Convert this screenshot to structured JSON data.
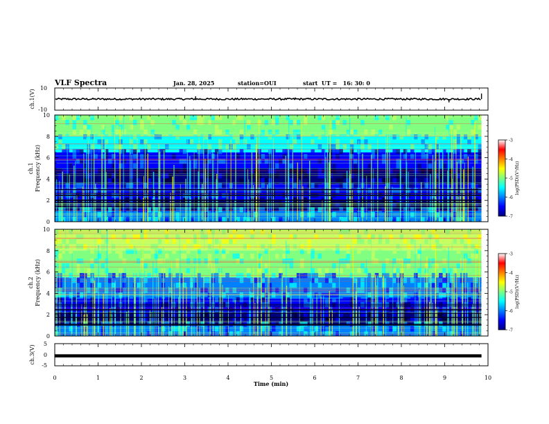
{
  "header": {
    "title": "VLF Spectra",
    "date": "Jan. 28, 2025",
    "station": "station=OUI",
    "start": "start  UT =   16: 30: 0"
  },
  "colorbar": {
    "label": "log(PSD)(V²/Hz)",
    "ticks": [
      "-3",
      "-4",
      "-5",
      "-6",
      "-7"
    ],
    "colors": [
      "#00007f",
      "#0000ff",
      "#0080ff",
      "#00ffff",
      "#80ff80",
      "#ffff00",
      "#ff8000",
      "#ff0000",
      "#ffffff"
    ]
  },
  "chart_data": [
    {
      "type": "line",
      "panel": "ch1-voltage",
      "ylabel": "ch.1(V)",
      "ylim": [
        -10,
        10
      ],
      "yticks": [
        "10",
        "-10"
      ],
      "series": [
        {
          "x": [
            0,
            3.25,
            5.55,
            9.1,
            9.85
          ],
          "y": [
            0,
            2.5,
            1.5,
            -3,
            5
          ]
        }
      ]
    },
    {
      "type": "heatmap",
      "panel": "ch1-spectrogram",
      "ylabel": "ch.1\nFrequency (kHz)",
      "xlim": [
        0,
        10
      ],
      "ylim": [
        0,
        10
      ],
      "yticks": [
        "0",
        "2",
        "4",
        "6",
        "8",
        "10"
      ],
      "zlim": [
        -7,
        -3
      ],
      "bands": [
        {
          "f0": 0,
          "f1": 1.0,
          "level": 3
        },
        {
          "f0": 1.0,
          "f1": 2.0,
          "level": 1
        },
        {
          "f0": 2.0,
          "f1": 3.5,
          "level": 2
        },
        {
          "f0": 3.5,
          "f1": 5.0,
          "level": 1
        },
        {
          "f0": 5.0,
          "f1": 6.5,
          "level": 2
        },
        {
          "f0": 6.5,
          "f1": 8.0,
          "level": 4
        },
        {
          "f0": 8.0,
          "f1": 10.0,
          "level": 5
        }
      ]
    },
    {
      "type": "heatmap",
      "panel": "ch2-spectrogram",
      "ylabel": "ch.2\nFrequency (kHz)",
      "xlim": [
        0,
        10
      ],
      "ylim": [
        0,
        10
      ],
      "yticks": [
        "0",
        "2",
        "4",
        "6",
        "8",
        "10"
      ],
      "zlim": [
        -7,
        -3
      ],
      "bands": [
        {
          "f0": 0,
          "f1": 1.0,
          "level": 3
        },
        {
          "f0": 1.0,
          "f1": 2.2,
          "level": 1
        },
        {
          "f0": 2.2,
          "f1": 3.5,
          "level": 2
        },
        {
          "f0": 3.5,
          "f1": 5.5,
          "level": 3
        },
        {
          "f0": 5.5,
          "f1": 8.0,
          "level": 5
        },
        {
          "f0": 8.0,
          "f1": 10.0,
          "level": 6
        }
      ]
    },
    {
      "type": "line",
      "panel": "ch3-voltage",
      "ylabel": "ch.3(V)",
      "ylim": [
        -5,
        5
      ],
      "yticks": [
        "5",
        "0",
        "-5"
      ],
      "series": [
        {
          "x": [
            0,
            9.85
          ],
          "y": [
            -0.5,
            -0.5
          ]
        }
      ]
    }
  ],
  "xaxis": {
    "label": "Time (min)",
    "ticks": [
      "0",
      "1",
      "2",
      "3",
      "4",
      "5",
      "6",
      "7",
      "8",
      "9",
      "10"
    ],
    "xlim": [
      0,
      10
    ],
    "data_end": 9.85
  }
}
